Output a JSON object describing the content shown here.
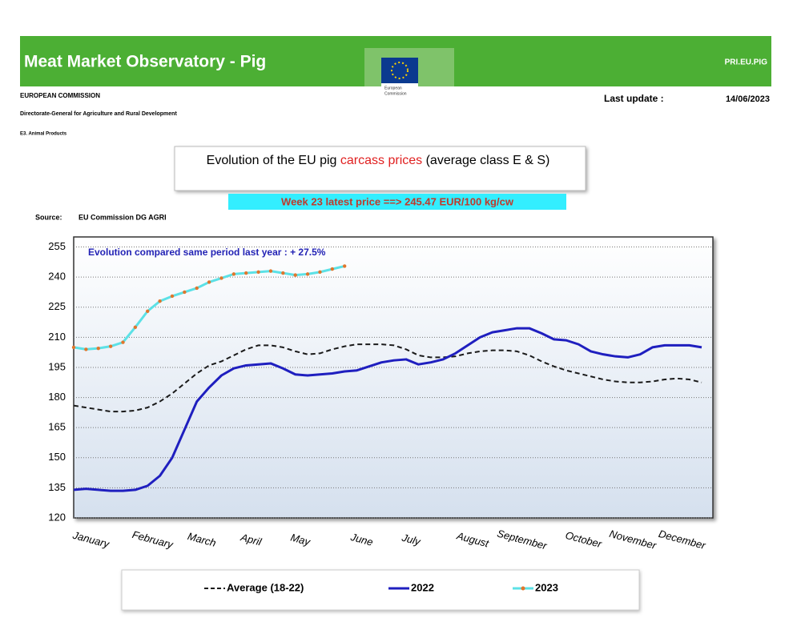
{
  "header": {
    "title": "Meat Market Observatory - Pig",
    "site": "PRI.EU.PIG",
    "logo_text": [
      "European",
      "Commission"
    ],
    "org": "EUROPEAN COMMISSION",
    "dg": "Directorate-General for Agriculture and Rural Development",
    "unit": "E3. Animal Products",
    "update_label": "Last update :",
    "update_date": "14/06/2023"
  },
  "chart_data": {
    "type": "line",
    "title_parts": [
      "Evolution of the EU pig ",
      "carcass prices",
      " (average class E & S)"
    ],
    "banner": "Week 23 latest price ==>  245.47 EUR/100 kg/cw",
    "source_label": "Source:",
    "source": "EU Commission DG AGRI",
    "annotation": "Evolution compared same period last year   : + 27.5%",
    "categories": [
      null,
      "January",
      null,
      null,
      null,
      null,
      "February",
      null,
      null,
      null,
      "March",
      null,
      null,
      null,
      "April",
      null,
      null,
      null,
      "May",
      null,
      null,
      null,
      null,
      "June",
      null,
      null,
      null,
      "July",
      null,
      null,
      null,
      null,
      "August",
      null,
      null,
      null,
      "September",
      null,
      null,
      null,
      null,
      "October",
      null,
      null,
      null,
      "November",
      null,
      null,
      null,
      "December",
      null,
      null
    ],
    "ylim": [
      120,
      260
    ],
    "yticks": [
      120,
      135,
      150,
      165,
      180,
      195,
      210,
      225,
      240,
      255
    ],
    "grid": true,
    "series": [
      {
        "name": "Average (18-22)",
        "color": "#1a1a1a",
        "dash": true,
        "values": [
          176,
          175,
          174,
          173,
          173,
          173.5,
          175,
          178,
          182,
          187,
          192,
          196,
          198,
          201,
          204,
          206,
          206,
          205,
          203,
          201.5,
          202,
          204,
          205.5,
          206.5,
          206.5,
          206.5,
          206,
          204,
          201,
          200,
          200,
          200.5,
          202,
          203,
          203.5,
          203.5,
          203,
          201,
          198,
          195.5,
          193.5,
          192,
          190.5,
          189,
          188,
          187.5,
          187.5,
          188,
          189,
          189.5,
          189,
          187.5
        ]
      },
      {
        "name": "2022",
        "color": "#1f1fbf",
        "dash": false,
        "values": [
          134,
          134.5,
          134,
          133.5,
          133.5,
          134,
          136,
          141,
          150,
          164,
          178,
          185,
          191,
          194.5,
          196,
          196.5,
          197,
          194.5,
          191.5,
          191,
          191.5,
          192,
          193,
          193.5,
          195.5,
          197.5,
          198.5,
          199,
          196.5,
          197.5,
          199,
          202,
          206,
          210,
          212.5,
          213.5,
          214.5,
          214.5,
          212,
          209,
          208.5,
          206.5,
          203,
          201.5,
          200.5,
          200,
          201.5,
          205,
          206,
          206,
          206,
          205
        ]
      },
      {
        "name": "2023",
        "color": "#5ce1e6",
        "marker_color": "#e0762d",
        "dash": false,
        "values": [
          205,
          204,
          204.5,
          205.5,
          207.5,
          215,
          223,
          228,
          230.5,
          232.5,
          234.5,
          237.5,
          239.5,
          241.5,
          242,
          242.5,
          243,
          242,
          241,
          241.5,
          242.5,
          244,
          245.47,
          null,
          null,
          null,
          null,
          null,
          null,
          null,
          null,
          null,
          null,
          null,
          null,
          null,
          null,
          null,
          null,
          null,
          null,
          null,
          null,
          null,
          null,
          null,
          null,
          null,
          null,
          null,
          null,
          null
        ]
      }
    ]
  }
}
